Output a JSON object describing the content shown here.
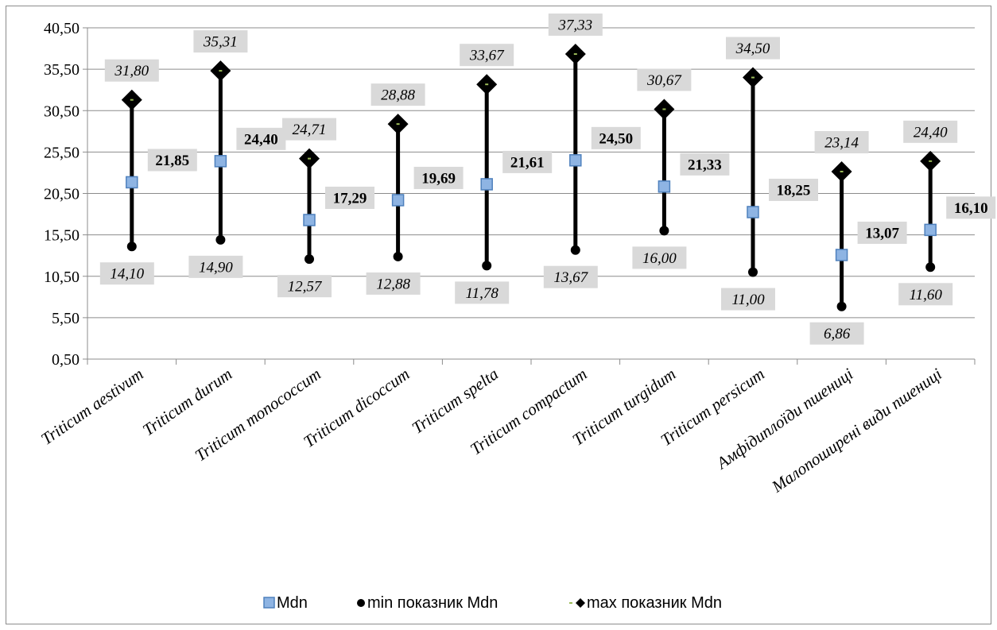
{
  "chart_data": {
    "type": "scatter",
    "categories": [
      "Triticum aestivum",
      "Triticum durum",
      "Triticum monococcum",
      "Triticum dicoccum",
      "Triticum spelta",
      "Triticum compactum",
      "Triticum turgidum",
      "Triticum persicum",
      "Амфідиплоїди пшениці",
      "Малопоширені види пшениці"
    ],
    "series": [
      {
        "name": "Mdn",
        "values": [
          21.85,
          24.4,
          17.29,
          19.69,
          21.61,
          24.5,
          21.33,
          18.25,
          13.07,
          16.1
        ],
        "labels": [
          "21,85",
          "24,40",
          "17,29",
          "19,69",
          "21,61",
          "24,50",
          "21,33",
          "18,25",
          "13,07",
          "16,10"
        ],
        "color": "#8eb4e3"
      },
      {
        "name": "min показник Mdn",
        "values": [
          14.1,
          14.9,
          12.57,
          12.88,
          11.78,
          13.67,
          16.0,
          11.0,
          6.86,
          11.6
        ],
        "labels": [
          "14,10",
          "14,90",
          "12,57",
          "12,88",
          "11,78",
          "13,67",
          "16,00",
          "11,00",
          "6,86",
          "11,60"
        ],
        "color": "#000000"
      },
      {
        "name": "max показник Mdn",
        "values": [
          31.8,
          35.31,
          24.71,
          28.88,
          33.67,
          37.33,
          30.67,
          34.5,
          23.14,
          24.4
        ],
        "labels": [
          "31,80",
          "35,31",
          "24,71",
          "28,88",
          "33,67",
          "37,33",
          "30,67",
          "34,50",
          "23,14",
          "24,40"
        ],
        "color": "#000000"
      }
    ],
    "y_ticks": [
      "0,50",
      "5,50",
      "10,50",
      "15,50",
      "20,50",
      "25,50",
      "30,50",
      "35,50",
      "40,50"
    ],
    "ylim": [
      0.5,
      40.5
    ],
    "legend_position": "bottom",
    "grid": true,
    "label_background": "#d9d9d9"
  }
}
